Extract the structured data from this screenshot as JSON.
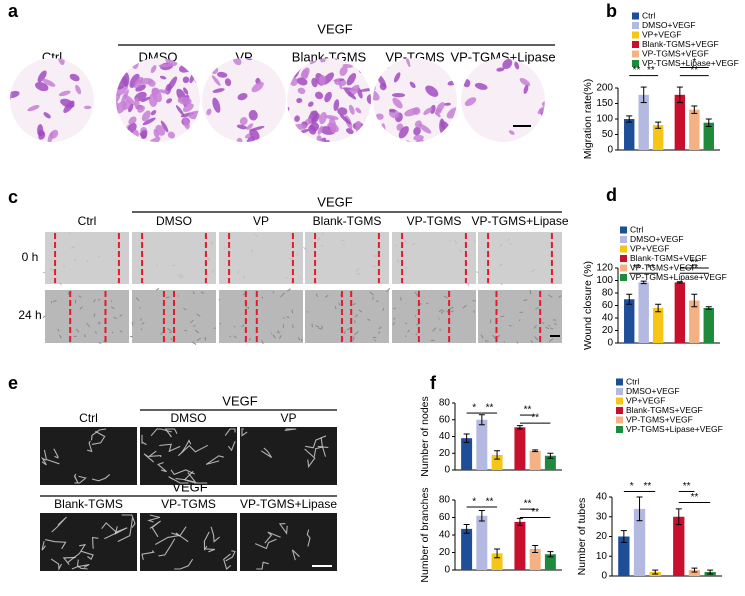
{
  "panel_labels": [
    "a",
    "b",
    "c",
    "d",
    "e",
    "f"
  ],
  "migration_images": {
    "group_label": "VEGF",
    "labels": [
      "Ctrl",
      "DMSO",
      "VP",
      "Blank-TGMS",
      "VP-TGMS",
      "VP-TGMS+Lipase"
    ]
  },
  "wound_images": {
    "group_label": "VEGF",
    "labels": [
      "Ctrl",
      "DMSO",
      "VP",
      "Blank-TGMS",
      "VP-TGMS",
      "VP-TGMS+Lipase"
    ],
    "rows": [
      "0 h",
      "24 h"
    ]
  },
  "tube_images": {
    "group_labels": [
      "VEGF",
      "VEGF"
    ],
    "labels": [
      "Ctrl",
      "DMSO",
      "VP",
      "Blank-TGMS",
      "VP-TGMS",
      "VP-TGMS+Lipase"
    ]
  },
  "chart_data": [
    {
      "type": "bar",
      "ylabel": "Migration rate(%)",
      "ylim": [
        0,
        200
      ],
      "yticks": [
        0,
        50,
        100,
        150,
        200
      ],
      "series": [
        {
          "name": "Ctrl",
          "color": "#1f4e99",
          "values": [
            100
          ],
          "errors": [
            10
          ]
        },
        {
          "name": "DMSO+VEGF",
          "color": "#b3b9e0",
          "values": [
            178
          ],
          "errors": [
            25
          ]
        },
        {
          "name": "VP+VEGF",
          "color": "#f5c518",
          "values": [
            80
          ],
          "errors": [
            10
          ]
        },
        {
          "name": "Blank-TGMS+VEGF",
          "color": "#c8102e",
          "values": [
            178
          ],
          "errors": [
            25
          ]
        },
        {
          "name": "VP-TGMS+VEGF",
          "color": "#f4b183",
          "values": [
            130
          ],
          "errors": [
            12
          ]
        },
        {
          "name": "VP-TGMS+Lipase+VEGF",
          "color": "#1e8a3c",
          "values": [
            88
          ],
          "errors": [
            12
          ]
        }
      ],
      "annotations": [
        "**",
        "**",
        "*",
        "**"
      ]
    },
    {
      "type": "bar",
      "ylabel": "Wound closure (%)",
      "ylim": [
        0,
        120
      ],
      "yticks": [
        0,
        20,
        40,
        60,
        80,
        100,
        120
      ],
      "series": [
        {
          "name": "Ctrl",
          "color": "#1f4e99",
          "values": [
            70
          ],
          "errors": [
            8
          ]
        },
        {
          "name": "DMSO+VEGF",
          "color": "#b3b9e0",
          "values": [
            97
          ],
          "errors": [
            2
          ]
        },
        {
          "name": "VP+VEGF",
          "color": "#f5c518",
          "values": [
            56
          ],
          "errors": [
            6
          ]
        },
        {
          "name": "Blank-TGMS+VEGF",
          "color": "#c8102e",
          "values": [
            97
          ],
          "errors": [
            1
          ]
        },
        {
          "name": "VP-TGMS+VEGF",
          "color": "#f4b183",
          "values": [
            68
          ],
          "errors": [
            10
          ]
        },
        {
          "name": "VP-TGMS+Lipase+VEGF",
          "color": "#1e8a3c",
          "values": [
            56
          ],
          "errors": [
            2
          ]
        }
      ],
      "annotations": [
        "**",
        "**",
        "**",
        "**"
      ]
    },
    {
      "type": "bar",
      "ylabel": "Number of nodes",
      "ylim": [
        0,
        80
      ],
      "yticks": [
        0,
        20,
        40,
        60,
        80
      ],
      "series": [
        {
          "color": "#1f4e99",
          "values": [
            38
          ],
          "errors": [
            5
          ]
        },
        {
          "color": "#b3b9e0",
          "values": [
            60
          ],
          "errors": [
            6
          ]
        },
        {
          "color": "#f5c518",
          "values": [
            18
          ],
          "errors": [
            5
          ]
        },
        {
          "color": "#c8102e",
          "values": [
            51
          ],
          "errors": [
            2
          ]
        },
        {
          "color": "#f4b183",
          "values": [
            23
          ],
          "errors": [
            1
          ]
        },
        {
          "color": "#1e8a3c",
          "values": [
            17
          ],
          "errors": [
            3
          ]
        }
      ],
      "annotations": [
        "*",
        "**",
        "**",
        "**"
      ]
    },
    {
      "type": "bar",
      "ylabel": "Number of branches",
      "ylim": [
        0,
        80
      ],
      "yticks": [
        0,
        20,
        40,
        60,
        80
      ],
      "series": [
        {
          "color": "#1f4e99",
          "values": [
            47
          ],
          "errors": [
            5
          ]
        },
        {
          "color": "#b3b9e0",
          "values": [
            62
          ],
          "errors": [
            6
          ]
        },
        {
          "color": "#f5c518",
          "values": [
            19
          ],
          "errors": [
            5
          ]
        },
        {
          "color": "#c8102e",
          "values": [
            55
          ],
          "errors": [
            4
          ]
        },
        {
          "color": "#f4b183",
          "values": [
            24
          ],
          "errors": [
            4
          ]
        },
        {
          "color": "#1e8a3c",
          "values": [
            18
          ],
          "errors": [
            3
          ]
        }
      ],
      "annotations": [
        "*",
        "**",
        "**",
        "**"
      ]
    },
    {
      "type": "bar",
      "ylabel": "Number of tubes",
      "ylim": [
        0,
        40
      ],
      "yticks": [
        0,
        10,
        20,
        30,
        40
      ],
      "series": [
        {
          "name": "Ctrl",
          "color": "#1f4e99",
          "values": [
            20
          ],
          "errors": [
            3
          ]
        },
        {
          "name": "DMSO+VEGF",
          "color": "#b3b9e0",
          "values": [
            34
          ],
          "errors": [
            6
          ]
        },
        {
          "name": "VP+VEGF",
          "color": "#f5c518",
          "values": [
            2
          ],
          "errors": [
            1
          ]
        },
        {
          "name": "Blank-TGMS+VEGF",
          "color": "#c8102e",
          "values": [
            30
          ],
          "errors": [
            4
          ]
        },
        {
          "name": "VP-TGMS+VEGF",
          "color": "#f4b183",
          "values": [
            3
          ],
          "errors": [
            1
          ]
        },
        {
          "name": "VP-TGMS+Lipase+VEGF",
          "color": "#1e8a3c",
          "values": [
            2
          ],
          "errors": [
            1
          ]
        }
      ],
      "annotations": [
        "*",
        "**",
        "**",
        "**"
      ]
    }
  ]
}
